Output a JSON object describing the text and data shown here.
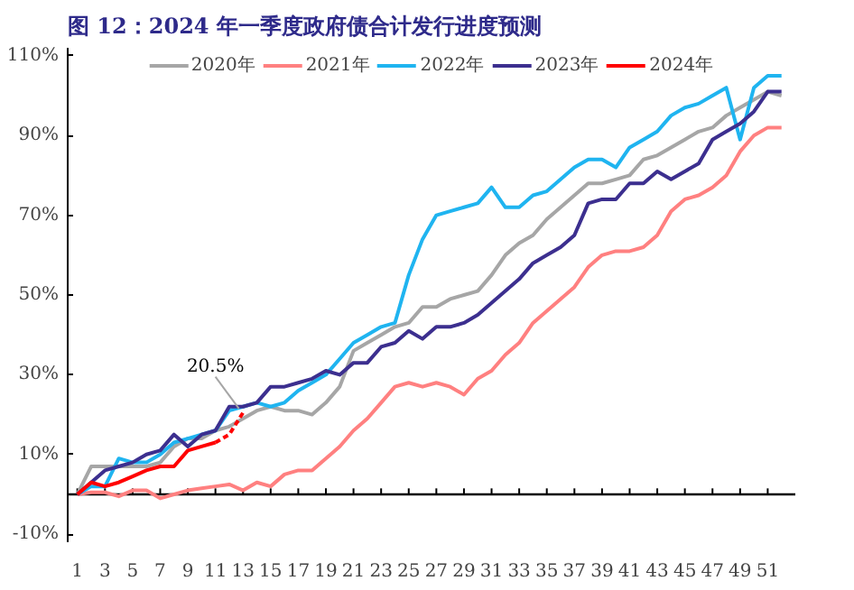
{
  "chart_data": {
    "type": "line",
    "title": "图 12：2024 年一季度政府债合计发行进度预测",
    "x": [
      1,
      2,
      3,
      4,
      5,
      6,
      7,
      8,
      9,
      10,
      11,
      12,
      13,
      14,
      15,
      16,
      17,
      18,
      19,
      20,
      21,
      22,
      23,
      24,
      25,
      26,
      27,
      28,
      29,
      30,
      31,
      32,
      33,
      34,
      35,
      36,
      37,
      38,
      39,
      40,
      41,
      42,
      43,
      44,
      45,
      46,
      47,
      48,
      49,
      50,
      51,
      52
    ],
    "series": [
      {
        "name": "2020年",
        "color": "#a6a6a6",
        "values": [
          0,
          7,
          7,
          7,
          7,
          7,
          8,
          12,
          14,
          14,
          16,
          17,
          19,
          21,
          22,
          21,
          21,
          20,
          23,
          27,
          36,
          38,
          40,
          42,
          43,
          47,
          47,
          49,
          50,
          51,
          55,
          60,
          63,
          65,
          69,
          72,
          75,
          78,
          78,
          79,
          80,
          84,
          85,
          87,
          89,
          91,
          92,
          95,
          97,
          99,
          101,
          100
        ]
      },
      {
        "name": "2021年",
        "color": "#ff8080",
        "values": [
          0,
          0.5,
          0.5,
          -0.5,
          1,
          1,
          -1,
          0,
          1,
          1.5,
          2,
          2.5,
          1,
          3,
          2,
          5,
          6,
          6,
          9,
          12,
          16,
          19,
          23,
          27,
          28,
          27,
          28,
          27,
          25,
          29,
          31,
          35,
          38,
          43,
          46,
          49,
          52,
          57,
          60,
          61,
          61,
          62,
          65,
          71,
          74,
          75,
          77,
          80,
          86,
          90,
          92,
          92
        ]
      },
      {
        "name": "2022年",
        "color": "#1fb4f0",
        "values": [
          0,
          2,
          2,
          9,
          8,
          8,
          10,
          13,
          14,
          15,
          16,
          21,
          22,
          23,
          22,
          23,
          26,
          28,
          30,
          34,
          38,
          40,
          42,
          43,
          55,
          64,
          70,
          71,
          72,
          73,
          77,
          72,
          72,
          75,
          76,
          79,
          82,
          84,
          84,
          82,
          87,
          89,
          91,
          95,
          97,
          98,
          100,
          102,
          89,
          102,
          105,
          105
        ]
      },
      {
        "name": "2023年",
        "color": "#3c2f8f",
        "values": [
          0,
          3,
          6,
          7,
          8,
          10,
          11,
          15,
          12,
          15,
          16,
          22,
          22,
          23,
          27,
          27,
          28,
          29,
          31,
          30,
          33,
          33,
          37,
          38,
          41,
          39,
          42,
          42,
          43,
          45,
          48,
          51,
          54,
          58,
          60,
          62,
          65,
          73,
          74,
          74,
          78,
          78,
          81,
          79,
          81,
          83,
          89,
          91,
          93,
          96,
          101,
          101
        ]
      },
      {
        "name": "2024年",
        "color": "#ff0000",
        "x": [
          1,
          2,
          3,
          4,
          5,
          6,
          7,
          8,
          9,
          10,
          11
        ],
        "values": [
          0,
          3,
          2,
          3,
          4.5,
          6,
          7,
          7,
          11,
          12,
          13
        ]
      },
      {
        "color": "#ff0000",
        "line_style": "dashed",
        "x": [
          11,
          12,
          13
        ],
        "values": [
          13,
          15,
          20.5
        ]
      }
    ],
    "annotations": [
      {
        "text": "20.5%",
        "x": 13,
        "y": 20.5
      }
    ],
    "xlim": [
      0.3,
      53
    ],
    "xticks": [
      1,
      3,
      5,
      7,
      9,
      11,
      13,
      15,
      17,
      19,
      21,
      23,
      25,
      27,
      29,
      31,
      33,
      35,
      37,
      39,
      41,
      43,
      45,
      47,
      49,
      51
    ],
    "ylim": [
      -12,
      112
    ],
    "yticks": [
      {
        "value": -10,
        "label": "-10%"
      },
      {
        "value": 10,
        "label": "10%"
      },
      {
        "value": 30,
        "label": "30%"
      },
      {
        "value": 50,
        "label": "50%"
      },
      {
        "value": 70,
        "label": "70%"
      },
      {
        "value": 90,
        "label": "90%"
      },
      {
        "value": 110,
        "label": "110%"
      }
    ],
    "ref_lines": [
      {
        "axis": "y",
        "value": 0,
        "color": "#000000"
      }
    ],
    "legend": "top",
    "grid": false
  }
}
